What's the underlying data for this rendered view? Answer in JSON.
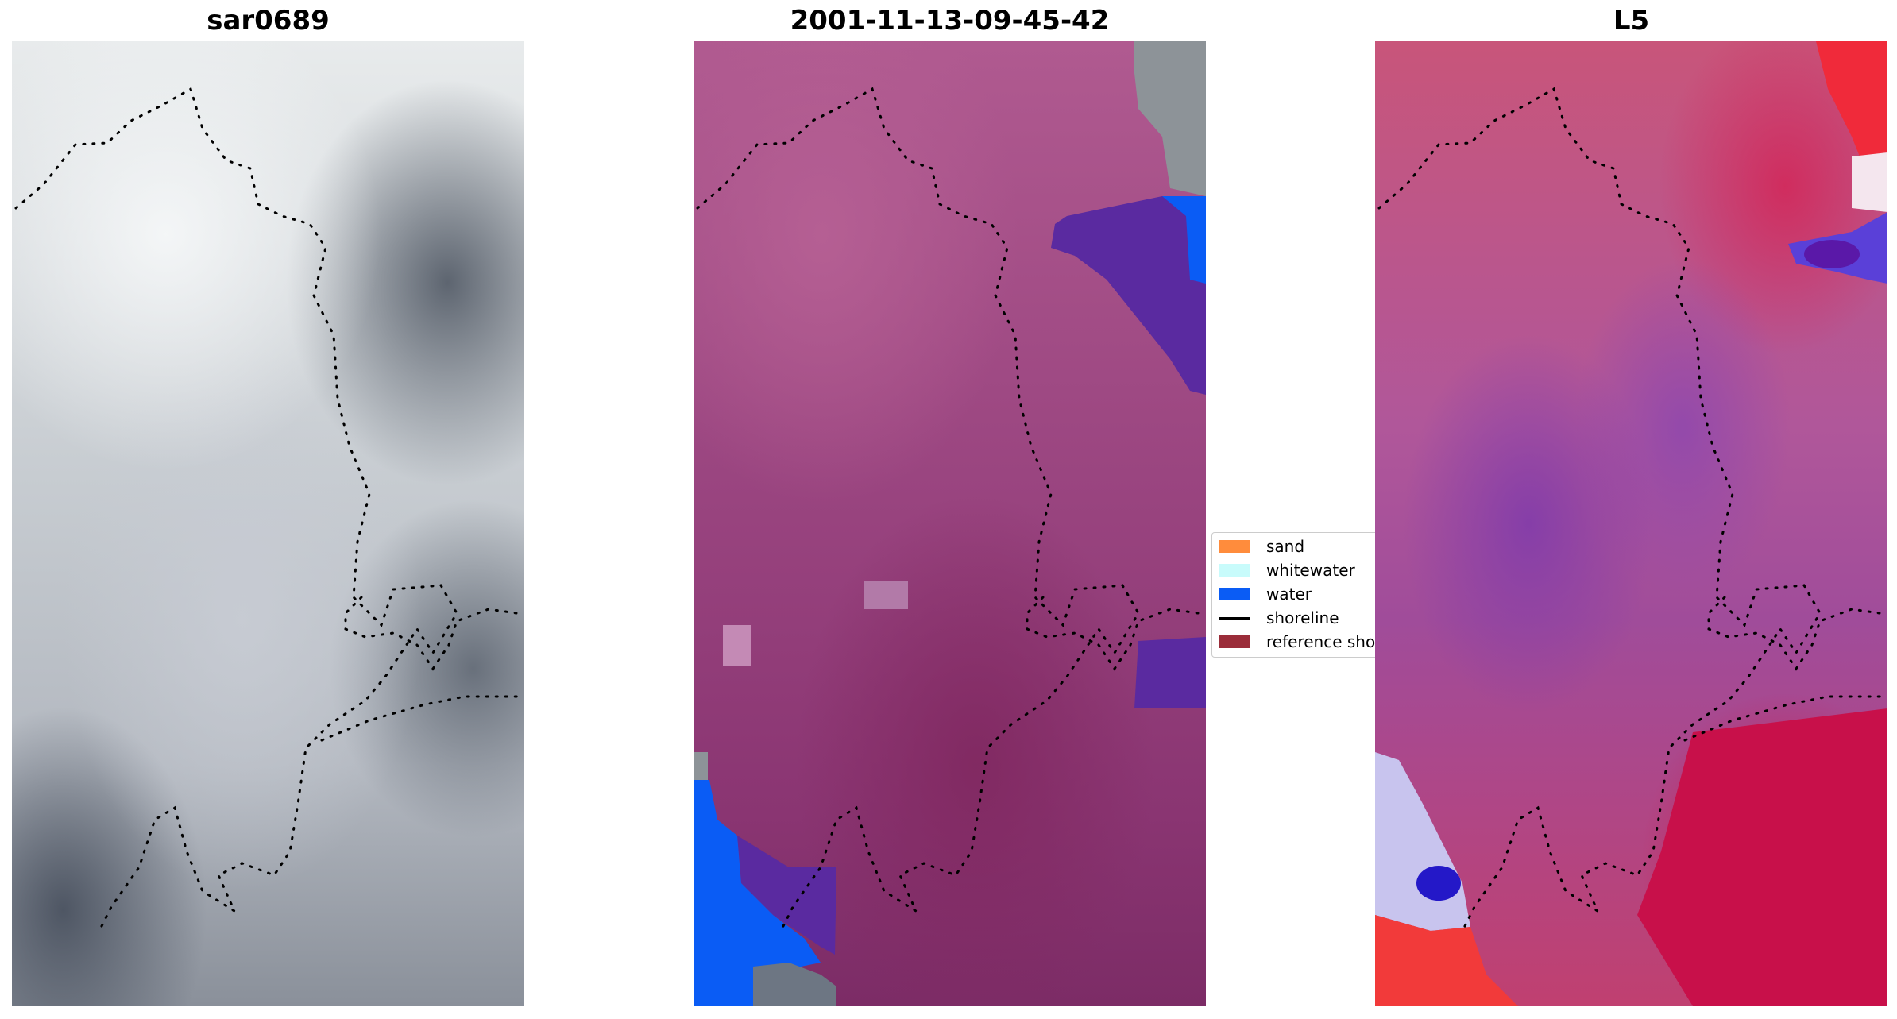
{
  "panels": [
    {
      "title": "sar0689",
      "image": "grayscale-satellite-rgb"
    },
    {
      "title": "2001-11-13-09-45-42",
      "image": "classified-overlay"
    },
    {
      "title": "L5",
      "image": "index-colormap"
    }
  ],
  "legend": {
    "items": [
      {
        "label": "sand",
        "color": "#ff8c3c",
        "kind": "patch"
      },
      {
        "label": "whitewater",
        "color": "#c8fbfb",
        "kind": "patch"
      },
      {
        "label": "water",
        "color": "#0a5cf5",
        "kind": "patch"
      },
      {
        "label": "shoreline",
        "color": "#000000",
        "kind": "line"
      },
      {
        "label": "reference shoreline",
        "color": "#9b2d3a",
        "kind": "patch"
      }
    ]
  },
  "colors": {
    "water_class": "#0a5cf5",
    "deep_water_overlay": "#5a2aa0",
    "shoreline_dots": "#000000"
  }
}
